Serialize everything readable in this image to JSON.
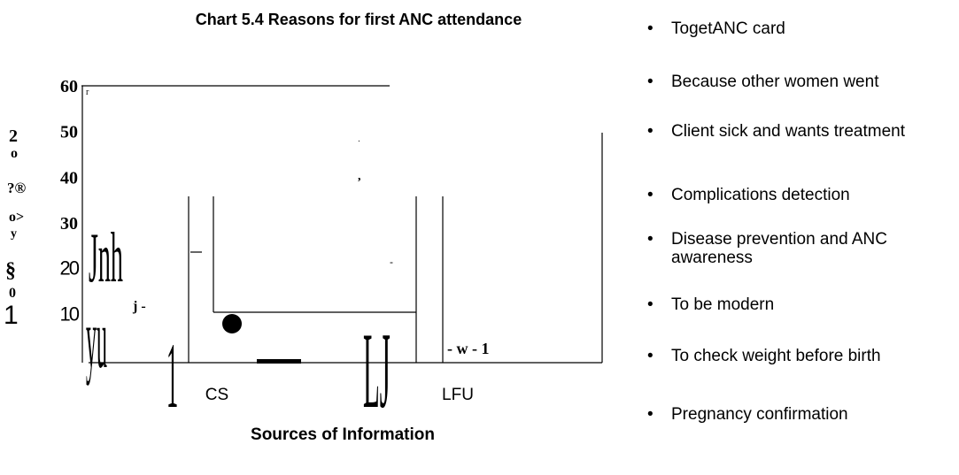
{
  "chart_data": {
    "type": "bar",
    "title": "Chart 5.4 Reasons for first ANC attendance",
    "xlabel": "Sources of Information",
    "categories": [
      "CS",
      "LFU"
    ],
    "ylim": [
      0,
      60
    ],
    "yticks": [
      10,
      20,
      30,
      40,
      50,
      60
    ],
    "legend": [
      "TogetANC card",
      "Because other women went",
      "Client sick and wants treatment",
      "Complications detection",
      "Disease prevention and ANC awareness",
      "To be modern",
      "To check weight before birth",
      "Pregnancy confirmation"
    ],
    "annotations": [
      "r",
      "2",
      "o",
      "?®",
      "o>",
      "y",
      "§",
      "0",
      "1",
      "Jnh",
      "yu",
      "j -",
      "1",
      "LJ",
      "- w - 1",
      ",",
      "-",
      "."
    ]
  }
}
